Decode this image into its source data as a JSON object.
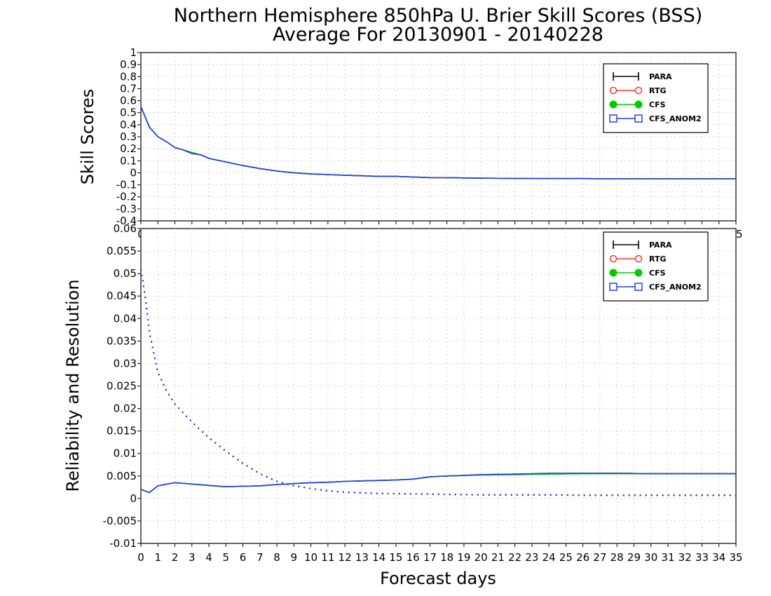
{
  "title_line1": "Northern Hemisphere 850hPa U. Brier Skill Scores (BSS)",
  "title_line2": "Average For 20130901 - 20140228",
  "xlabel": "Forecast days",
  "colors": {
    "PARA": "#000000",
    "RTG": "#ff3333",
    "CFS": "#00cc00",
    "CFS_ANOM2": "#1f3fff"
  },
  "chart_data": [
    {
      "type": "line",
      "ylabel": "Skill Scores",
      "xlim": [
        0,
        35
      ],
      "ylim": [
        -0.4,
        1
      ],
      "yticks": [
        1,
        0.9,
        0.8,
        0.7,
        0.6,
        0.5,
        0.4,
        0.3,
        0.2,
        0.1,
        0,
        -0.1,
        -0.2,
        -0.3,
        -0.4
      ],
      "xticks": [
        0,
        1,
        2,
        3,
        4,
        5,
        6,
        7,
        8,
        9,
        10,
        11,
        12,
        13,
        14,
        15,
        16,
        17,
        18,
        19,
        20,
        21,
        22,
        23,
        24,
        25,
        26,
        27,
        28,
        29,
        30,
        31,
        32,
        33,
        34,
        35
      ],
      "grid": true,
      "legend": {
        "placement": "top-right",
        "entries": [
          "PARA",
          "RTG",
          "CFS",
          "CFS_ANOM2"
        ]
      },
      "x": [
        0,
        0.5,
        1,
        1.5,
        2,
        2.5,
        3,
        3.5,
        4,
        5,
        6,
        7,
        8,
        9,
        10,
        11,
        12,
        13,
        14,
        15,
        16,
        17,
        18,
        19,
        20,
        22,
        24,
        26,
        28,
        30,
        32,
        35
      ],
      "series": [
        {
          "name": "PARA",
          "values": [
            0.55,
            0.38,
            0.3,
            0.26,
            0.21,
            0.19,
            0.16,
            0.15,
            0.12,
            0.09,
            0.06,
            0.035,
            0.015,
            0.0,
            -0.01,
            -0.015,
            -0.02,
            -0.025,
            -0.03,
            -0.03,
            -0.035,
            -0.04,
            -0.04,
            -0.043,
            -0.045,
            -0.047,
            -0.048,
            -0.048,
            -0.05,
            -0.05,
            -0.05,
            -0.05
          ]
        },
        {
          "name": "RTG",
          "values": [
            0.55,
            0.38,
            0.3,
            0.26,
            0.21,
            0.19,
            0.16,
            0.15,
            0.12,
            0.09,
            0.06,
            0.035,
            0.015,
            0.0,
            -0.01,
            -0.015,
            -0.02,
            -0.025,
            -0.03,
            -0.03,
            -0.035,
            -0.04,
            -0.04,
            -0.043,
            -0.045,
            -0.047,
            -0.048,
            -0.048,
            -0.05,
            -0.05,
            -0.05,
            -0.05
          ]
        },
        {
          "name": "CFS",
          "values": [
            0.55,
            0.38,
            0.3,
            0.26,
            0.21,
            0.19,
            0.17,
            0.15,
            0.12,
            0.09,
            0.06,
            0.035,
            0.015,
            0.0,
            -0.01,
            -0.015,
            -0.02,
            -0.025,
            -0.03,
            -0.03,
            -0.035,
            -0.04,
            -0.04,
            -0.043,
            -0.045,
            -0.047,
            -0.048,
            -0.048,
            -0.05,
            -0.05,
            -0.05,
            -0.05
          ]
        },
        {
          "name": "CFS_ANOM2",
          "values": [
            0.55,
            0.38,
            0.3,
            0.26,
            0.21,
            0.19,
            0.16,
            0.15,
            0.12,
            0.09,
            0.06,
            0.035,
            0.015,
            0.0,
            -0.01,
            -0.015,
            -0.02,
            -0.025,
            -0.03,
            -0.03,
            -0.035,
            -0.04,
            -0.04,
            -0.043,
            -0.045,
            -0.047,
            -0.048,
            -0.048,
            -0.05,
            -0.05,
            -0.05,
            -0.05
          ]
        }
      ]
    },
    {
      "type": "line",
      "ylabel": "Reliability and Resolution",
      "xlim": [
        0,
        35
      ],
      "ylim": [
        -0.01,
        0.06
      ],
      "yticks": [
        0.06,
        0.055,
        0.05,
        0.045,
        0.04,
        0.035,
        0.03,
        0.025,
        0.02,
        0.015,
        0.01,
        0.005,
        0,
        -0.005,
        -0.01
      ],
      "ytick_labels": [
        "0.06",
        "0.055",
        "0.05",
        "0.045",
        "0.04",
        "0.035",
        "0.03",
        "0.025",
        "0.02",
        "0.015",
        "0.01",
        "0.005",
        "0",
        "-0.005",
        "-0.01"
      ],
      "xticks": [
        0,
        1,
        2,
        3,
        4,
        5,
        6,
        7,
        8,
        9,
        10,
        11,
        12,
        13,
        14,
        15,
        16,
        17,
        18,
        19,
        20,
        21,
        22,
        23,
        24,
        25,
        26,
        27,
        28,
        29,
        30,
        31,
        32,
        33,
        34,
        35
      ],
      "grid": true,
      "legend": {
        "placement": "top-right",
        "entries": [
          "PARA",
          "RTG",
          "CFS",
          "CFS_ANOM2"
        ]
      },
      "reliability": {
        "x": [
          0,
          0.5,
          1,
          2,
          3,
          4,
          5,
          6,
          7,
          8,
          9,
          10,
          11,
          12,
          13,
          14,
          15,
          16,
          17,
          18,
          19,
          20,
          22,
          24,
          26,
          28,
          30,
          32,
          35
        ],
        "series": [
          {
            "name": "PARA",
            "values": [
              0.002,
              0.0013,
              0.0028,
              0.0035,
              0.0032,
              0.0029,
              0.0026,
              0.0027,
              0.0028,
              0.0031,
              0.0033,
              0.0035,
              0.0036,
              0.0038,
              0.0039,
              0.004,
              0.0041,
              0.0043,
              0.0048,
              0.005,
              0.0051,
              0.0053,
              0.0054,
              0.0055,
              0.0056,
              0.0056,
              0.0055,
              0.0055,
              0.0055
            ]
          },
          {
            "name": "RTG",
            "values": [
              0.002,
              0.0013,
              0.0028,
              0.0035,
              0.0032,
              0.0029,
              0.0026,
              0.0027,
              0.0028,
              0.0031,
              0.0033,
              0.0035,
              0.0036,
              0.0038,
              0.0039,
              0.004,
              0.0041,
              0.0043,
              0.0048,
              0.005,
              0.0051,
              0.0053,
              0.0054,
              0.0055,
              0.0056,
              0.0056,
              0.0055,
              0.0055,
              0.0055
            ]
          },
          {
            "name": "CFS",
            "values": [
              0.002,
              0.0013,
              0.0028,
              0.0035,
              0.0032,
              0.0029,
              0.0026,
              0.0027,
              0.0028,
              0.0031,
              0.0033,
              0.0035,
              0.0036,
              0.0038,
              0.0039,
              0.004,
              0.0041,
              0.0043,
              0.0048,
              0.005,
              0.0051,
              0.0052,
              0.0053,
              0.0054,
              0.0055,
              0.0055,
              0.0055,
              0.0055,
              0.0055
            ]
          },
          {
            "name": "CFS_ANOM2",
            "values": [
              0.002,
              0.0013,
              0.0028,
              0.0035,
              0.0032,
              0.0029,
              0.0026,
              0.0027,
              0.0028,
              0.0031,
              0.0033,
              0.0035,
              0.0036,
              0.0038,
              0.0039,
              0.004,
              0.0041,
              0.0043,
              0.0048,
              0.005,
              0.0051,
              0.0053,
              0.0054,
              0.0056,
              0.0056,
              0.0056,
              0.0055,
              0.0055,
              0.0055
            ]
          }
        ]
      },
      "resolution": {
        "x": [
          0,
          0.25,
          0.5,
          1,
          1.5,
          2,
          3,
          4,
          5,
          6,
          7,
          8,
          9,
          10,
          11,
          12,
          14,
          16,
          18,
          20,
          22,
          24,
          26,
          28,
          30,
          32,
          35
        ],
        "series": [
          {
            "name": "PARA",
            "values": [
              0.051,
              0.045,
              0.037,
              0.028,
              0.024,
              0.021,
              0.017,
              0.0135,
              0.0105,
              0.0078,
              0.0055,
              0.0038,
              0.0028,
              0.0022,
              0.0017,
              0.0014,
              0.0011,
              0.001,
              0.0009,
              0.0008,
              0.0008,
              0.0008,
              0.0007,
              0.0007,
              0.0007,
              0.0007,
              0.0007
            ]
          },
          {
            "name": "RTG",
            "values": [
              0.051,
              0.045,
              0.037,
              0.028,
              0.024,
              0.021,
              0.017,
              0.0135,
              0.0105,
              0.0078,
              0.0055,
              0.0038,
              0.0028,
              0.0022,
              0.0017,
              0.0014,
              0.0011,
              0.001,
              0.0009,
              0.0008,
              0.0008,
              0.0008,
              0.0007,
              0.0007,
              0.0007,
              0.0007,
              0.0007
            ]
          },
          {
            "name": "CFS",
            "values": [
              0.051,
              0.045,
              0.037,
              0.028,
              0.024,
              0.021,
              0.017,
              0.0135,
              0.0105,
              0.0078,
              0.0055,
              0.0038,
              0.0028,
              0.0022,
              0.0017,
              0.0014,
              0.0011,
              0.001,
              0.0009,
              0.0008,
              0.0008,
              0.0008,
              0.0007,
              0.0007,
              0.0007,
              0.0007,
              0.0007
            ]
          },
          {
            "name": "CFS_ANOM2",
            "values": [
              0.051,
              0.045,
              0.037,
              0.028,
              0.024,
              0.021,
              0.017,
              0.0135,
              0.0105,
              0.0078,
              0.0055,
              0.0038,
              0.0028,
              0.0022,
              0.0017,
              0.0014,
              0.0011,
              0.001,
              0.0009,
              0.0008,
              0.0008,
              0.0008,
              0.0007,
              0.0007,
              0.0007,
              0.0007,
              0.0007
            ]
          }
        ]
      }
    }
  ]
}
